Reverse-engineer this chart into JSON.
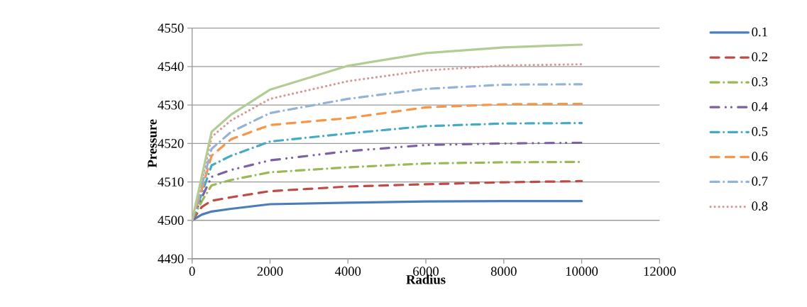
{
  "chart_data": {
    "type": "line",
    "xlabel": "Radius",
    "ylabel": "Pressure",
    "x": [
      0,
      250,
      500,
      1000,
      2000,
      4000,
      6000,
      8000,
      10000
    ],
    "series": [
      {
        "name": "0.1",
        "color": "#4a7ebb",
        "line_style": "solid",
        "values": [
          4500,
          4501.5,
          4502.3,
          4503,
          4504.2,
          4504.6,
          4504.9,
          4505,
          4505
        ]
      },
      {
        "name": "0.2",
        "color": "#be4b48",
        "line_style": "dashed",
        "values": [
          4500,
          4503.5,
          4505.1,
          4506,
          4507.6,
          4508.8,
          4509.4,
          4509.9,
          4510.2
        ]
      },
      {
        "name": "0.3",
        "color": "#98b954",
        "line_style": "dashdot",
        "values": [
          4500,
          4505,
          4509.1,
          4510.5,
          4512.5,
          4513.8,
          4514.8,
          4515.1,
          4515.2
        ]
      },
      {
        "name": "0.4",
        "color": "#7d60a0",
        "line_style": "dashdotdot",
        "values": [
          4500,
          4506,
          4511.3,
          4513.1,
          4515.6,
          4518,
          4519.6,
          4520,
          4520.2
        ]
      },
      {
        "name": "0.5",
        "color": "#46aac5",
        "line_style": "dashdot",
        "values": [
          4500,
          4507,
          4514.3,
          4516.8,
          4520.5,
          4522.6,
          4524.5,
          4525.2,
          4525.3
        ]
      },
      {
        "name": "0.6",
        "color": "#f79646",
        "line_style": "dashed",
        "values": [
          4500,
          4508,
          4516.8,
          4521.1,
          4524.8,
          4526.6,
          4529.4,
          4530.2,
          4530.3
        ]
      },
      {
        "name": "0.7",
        "color": "#95b3d7",
        "line_style": "dashdot",
        "values": [
          4500,
          4509,
          4518.6,
          4523,
          4527.9,
          4531.6,
          4534.2,
          4535.3,
          4535.4
        ]
      },
      {
        "name": "0.8",
        "color": "#d99694",
        "line_style": "dotted",
        "values": [
          4500,
          4510,
          4521.7,
          4526,
          4531.6,
          4536.2,
          4539,
          4540.3,
          4540.6
        ]
      },
      {
        "color": "#b3cc93",
        "line_style": "solid",
        "values": [
          4500,
          4511.5,
          4523,
          4527.5,
          4534,
          4540.2,
          4543.5,
          4545,
          4545.7
        ]
      }
    ],
    "xlim": [
      0,
      12000
    ],
    "xticks": [
      0,
      2000,
      4000,
      6000,
      8000,
      10000,
      12000
    ],
    "ylim": [
      4490,
      4550
    ],
    "yticks": [
      4490,
      4500,
      4510,
      4520,
      4530,
      4540,
      4550
    ],
    "grid": "y",
    "legend": "right",
    "marker": "none"
  }
}
